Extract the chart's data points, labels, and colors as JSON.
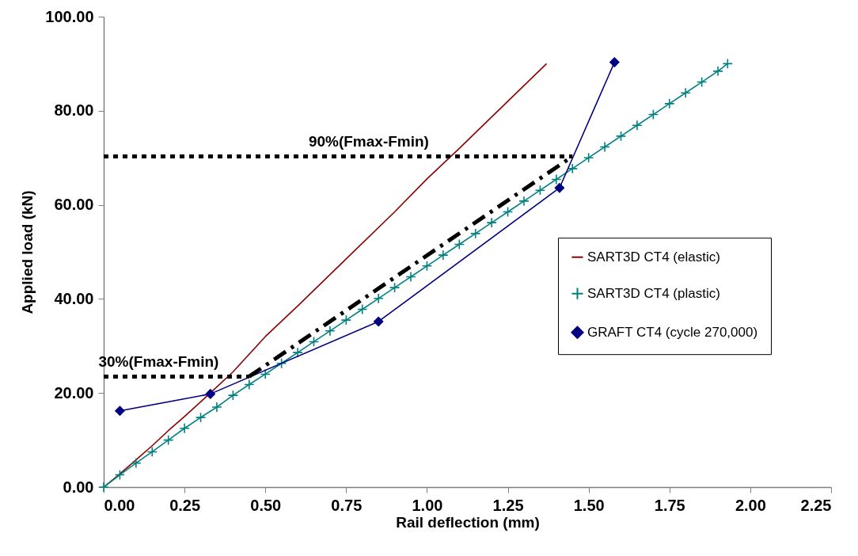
{
  "chart_data": {
    "type": "line",
    "xlabel": "Rail deflection (mm)",
    "ylabel": "Applied load (kN)",
    "xlim": [
      0,
      2.25
    ],
    "xticks": [
      {
        "value": 0,
        "label": "0.00"
      },
      {
        "value": 0.25,
        "label": "0.25"
      },
      {
        "value": 0.5,
        "label": "0.50"
      },
      {
        "value": 0.75,
        "label": "0.75"
      },
      {
        "value": 1,
        "label": "1.00"
      },
      {
        "value": 1.25,
        "label": "1.25"
      },
      {
        "value": 1.5,
        "label": "1.50"
      },
      {
        "value": 1.75,
        "label": "1.75"
      },
      {
        "value": 2,
        "label": "2.00"
      },
      {
        "value": 2.25,
        "label": "2.25"
      }
    ],
    "ylim": [
      0,
      100
    ],
    "yticks": [
      {
        "value": 0,
        "label": "0.00"
      },
      {
        "value": 20,
        "label": "20.00"
      },
      {
        "value": 40,
        "label": "40.00"
      },
      {
        "value": 60,
        "label": "60.00"
      },
      {
        "value": 80,
        "label": "80.00"
      },
      {
        "value": 100,
        "label": "100.00"
      }
    ],
    "grid": false,
    "legend": "right",
    "series": [
      {
        "name": "SART3D CT4 (elastic)",
        "color": "#8b0000",
        "marker": "none",
        "line_style": "solid",
        "x": [
          0,
          0.05,
          0.1,
          0.15,
          0.2,
          0.25,
          0.33,
          0.4,
          0.5,
          0.6,
          0.75,
          0.9,
          1.0,
          1.1,
          1.25,
          1.37
        ],
        "values": [
          0,
          2.8,
          5.8,
          8.8,
          12,
          15,
          20,
          24.5,
          32,
          38.5,
          48.5,
          58.5,
          65.5,
          72,
          82,
          90
        ]
      },
      {
        "name": "SART3D CT4 (plastic)",
        "color": "#008080",
        "marker": "cross",
        "line_style": "solid",
        "x": [
          0,
          0.05,
          0.1,
          0.15,
          0.2,
          0.25,
          0.3,
          0.35,
          0.4,
          0.45,
          0.5,
          0.55,
          0.6,
          0.65,
          0.7,
          0.75,
          0.8,
          0.85,
          0.9,
          0.95,
          1.0,
          1.05,
          1.1,
          1.15,
          1.2,
          1.25,
          1.3,
          1.35,
          1.4,
          1.45,
          1.5,
          1.55,
          1.6,
          1.65,
          1.7,
          1.75,
          1.8,
          1.85,
          1.9,
          1.93
        ],
        "values": [
          0,
          2.6,
          5.1,
          7.5,
          10,
          12.5,
          14.8,
          17,
          19.5,
          21.8,
          24,
          26.3,
          28.6,
          30.9,
          33.2,
          35.5,
          37.8,
          40.1,
          42.4,
          44.7,
          47,
          49.3,
          51.6,
          53.9,
          56.2,
          58.5,
          60.8,
          63.1,
          65.4,
          67.7,
          70,
          72.3,
          74.6,
          76.9,
          79.2,
          81.5,
          83.8,
          86.1,
          88.4,
          90
        ]
      },
      {
        "name": "GRAFT CT4 (cycle 270,000)",
        "color": "#000080",
        "marker": "diamond",
        "line_style": "solid",
        "x": [
          0.05,
          0.33,
          0.85,
          1.41,
          1.58
        ],
        "values": [
          16.2,
          19.8,
          35.2,
          63.6,
          90.3
        ]
      },
      {
        "color": "#000000",
        "marker": "none",
        "line_style": "dashed",
        "x": [
          0.45,
          1.45
        ],
        "values": [
          23.5,
          70.3
        ]
      },
      {
        "color": "#000000",
        "marker": "none",
        "line_style": "dotted",
        "x": [
          0,
          0.45
        ],
        "values": [
          23.5,
          23.5
        ]
      },
      {
        "color": "#000000",
        "marker": "none",
        "line_style": "dotted",
        "x": [
          0,
          1.45
        ],
        "values": [
          70.3,
          70.3
        ]
      }
    ],
    "annotations": [
      {
        "text": "90%(Fmax-Fmin)",
        "x": 0.82,
        "y": 70.3
      },
      {
        "text": "30%(Fmax-Fmin)",
        "x": 0.17,
        "y": 23.5
      }
    ]
  }
}
